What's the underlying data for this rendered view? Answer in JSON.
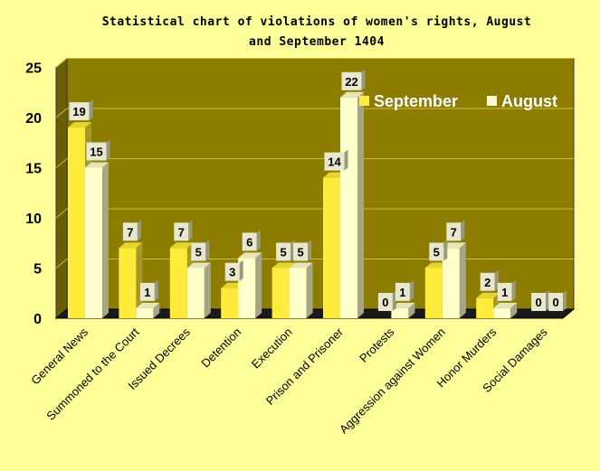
{
  "chart_data": {
    "type": "bar",
    "title": "Statistical chart of violations of women's rights, August  and September  1404",
    "categories": [
      "General News",
      "Summoned to the Court",
      "Issued Decrees",
      "Detention",
      "Execution",
      "Prison and Prisoner",
      "Protests",
      "Aggression against Women",
      "Honor Murders",
      "Social Damages"
    ],
    "series": [
      {
        "name": "September",
        "values": [
          19,
          7,
          7,
          3,
          5,
          14,
          0,
          5,
          2,
          0
        ],
        "color": "#ffeb3b"
      },
      {
        "name": "August",
        "values": [
          15,
          1,
          5,
          6,
          5,
          22,
          1,
          7,
          1,
          0
        ],
        "color": "#ffffcc"
      }
    ],
    "ylim": [
      0,
      25
    ],
    "yticks": [
      0,
      5,
      10,
      15,
      20,
      25
    ],
    "grid": true,
    "legend_position": "top-right",
    "xlabel": "",
    "ylabel": "",
    "colors": {
      "background": "#ffff99",
      "plot_wall": "#8c7d00",
      "plot_floor": "#1a1a1a",
      "gridline": "#c9bc3a",
      "label_box": "#e8e8cf"
    }
  }
}
